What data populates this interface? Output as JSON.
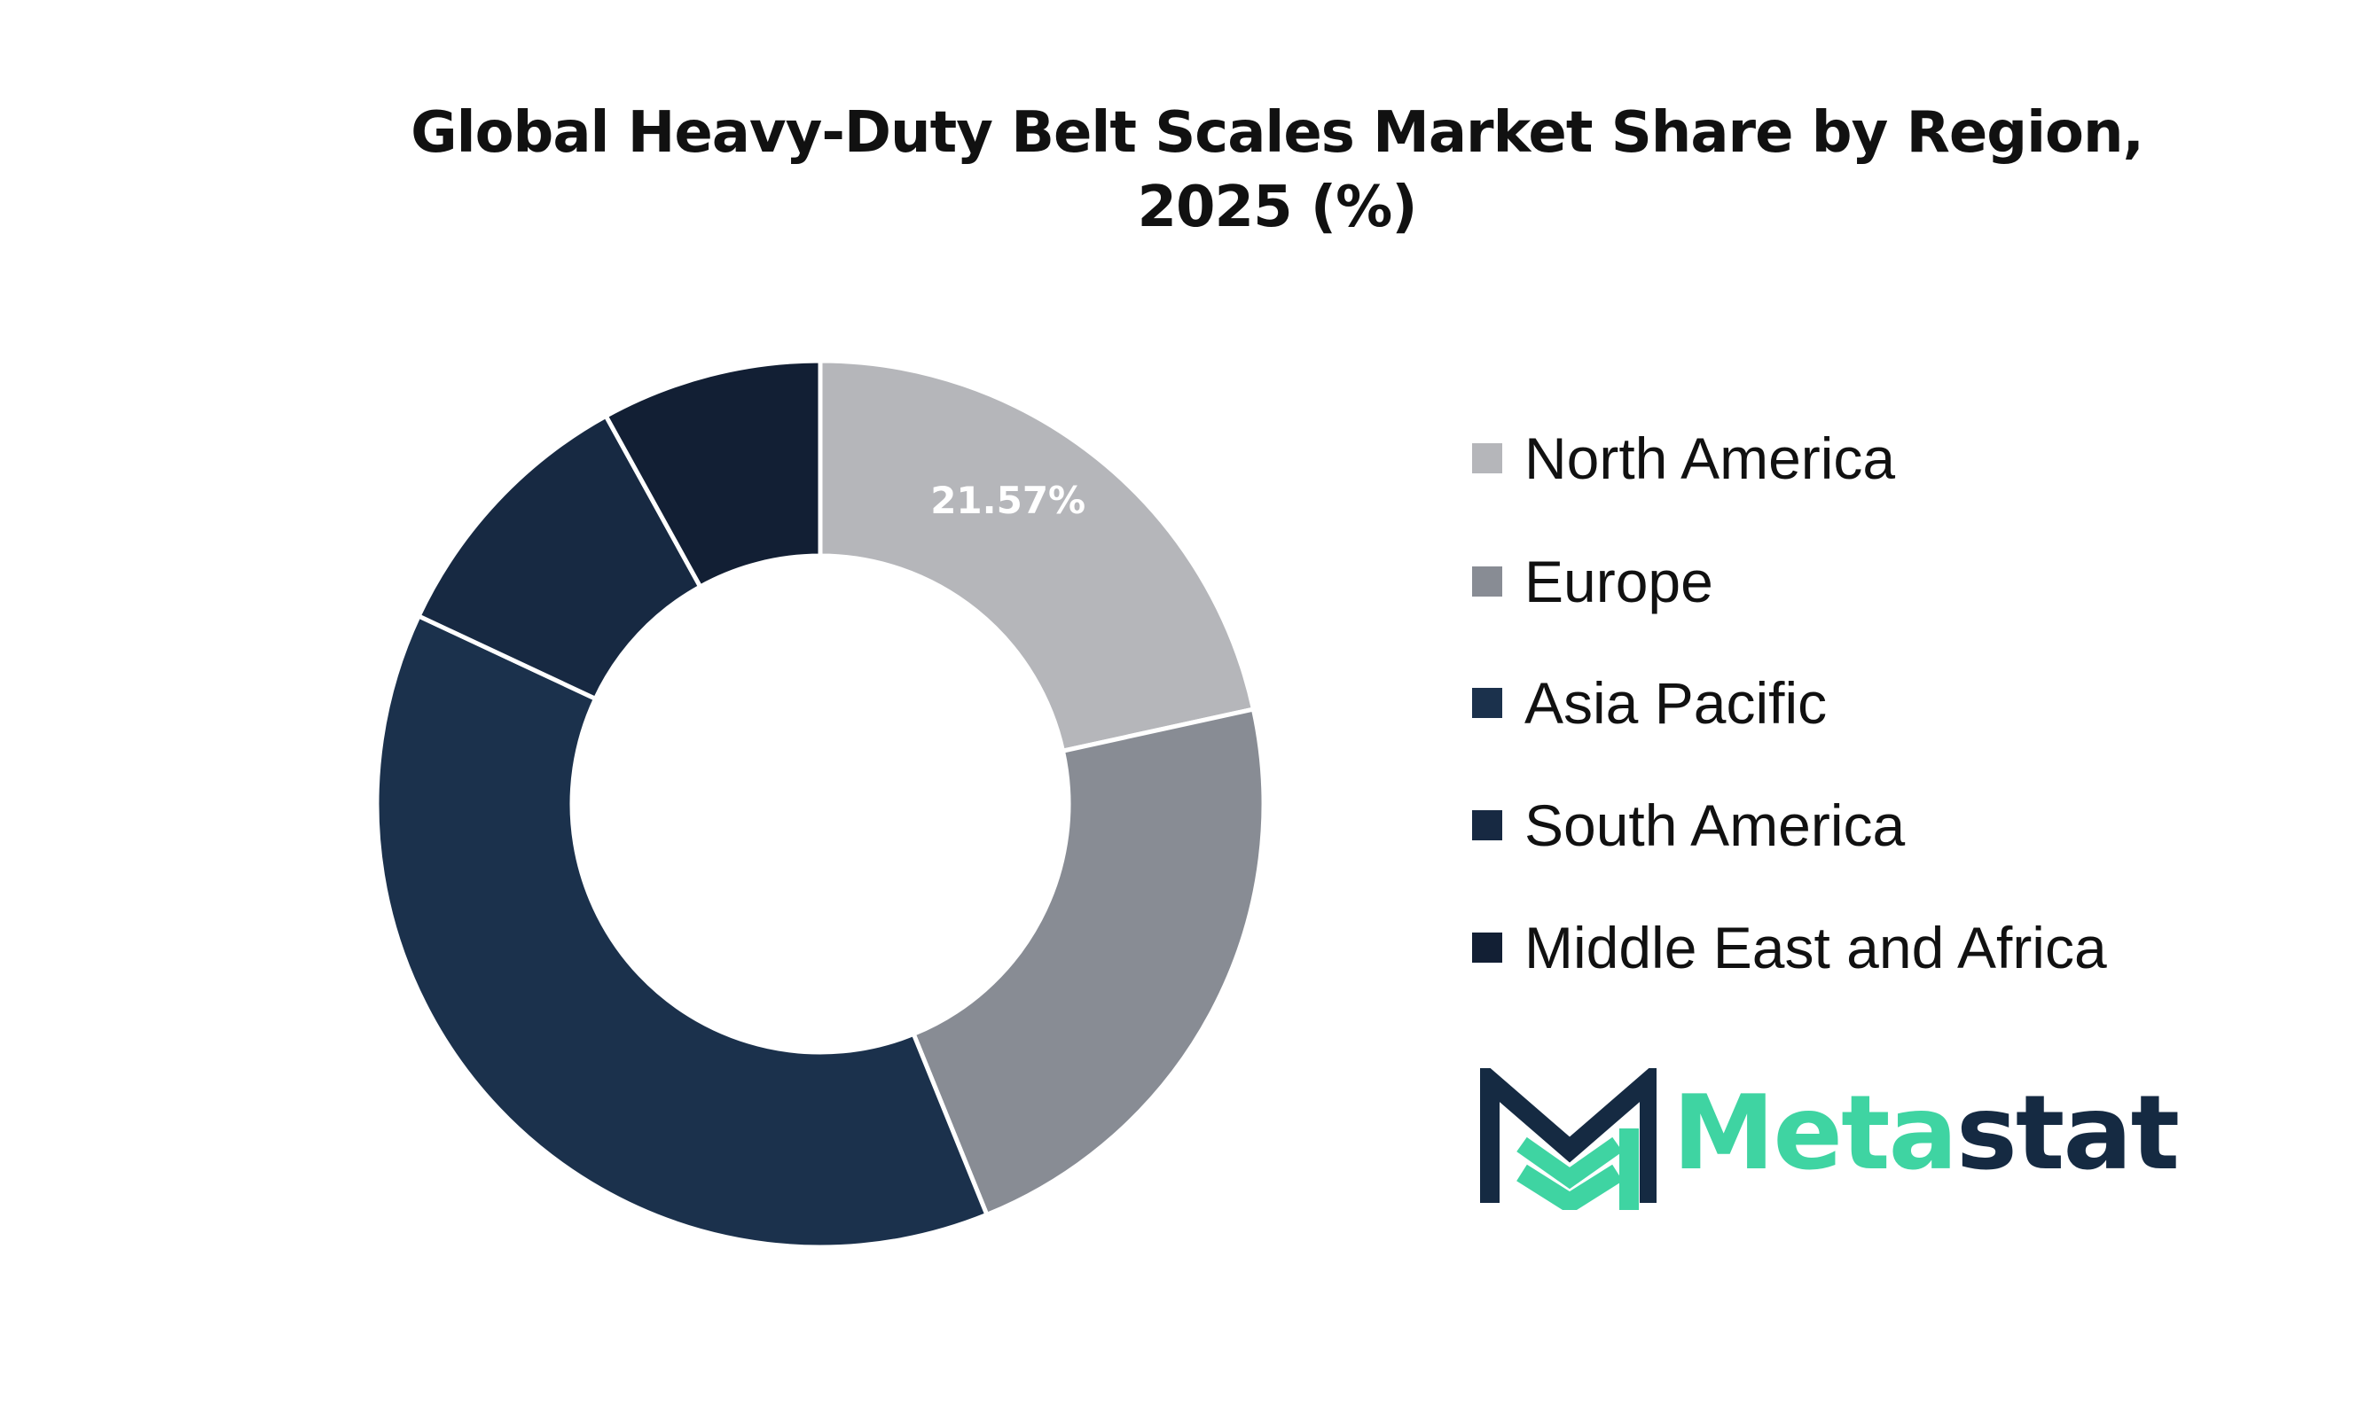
{
  "chart_data": {
    "type": "pie",
    "variant": "donut",
    "title_lines": [
      "Global Heavy-Duty Belt Scales Market Share by Region,",
      "2025 (%)"
    ],
    "categories": [
      "North America",
      "Europe",
      "Asia Pacific",
      "South America",
      "Middle East and Africa"
    ],
    "values": [
      21.57,
      22.3,
      38.1,
      10.0,
      8.03
    ],
    "data_labels": [
      "21.57%",
      "",
      "",
      "",
      ""
    ],
    "colors": [
      "#b5b6ba",
      "#888c94",
      "#1b314c",
      "#172942",
      "#121f34"
    ],
    "slice_border_color": "#ffffff",
    "legend": {
      "position": "right",
      "items": [
        {
          "label": "North America",
          "color": "#b5b6ba"
        },
        {
          "label": "Europe",
          "color": "#888c94"
        },
        {
          "label": "Asia Pacific",
          "color": "#1b314c"
        },
        {
          "label": "South America",
          "color": "#172942"
        },
        {
          "label": "Middle East and Africa",
          "color": "#121f34"
        }
      ]
    }
  },
  "logo": {
    "text_part1": "Meta",
    "text_part2": "stat",
    "color_part1": "#3fd4a2",
    "color_part2": "#152a42"
  }
}
